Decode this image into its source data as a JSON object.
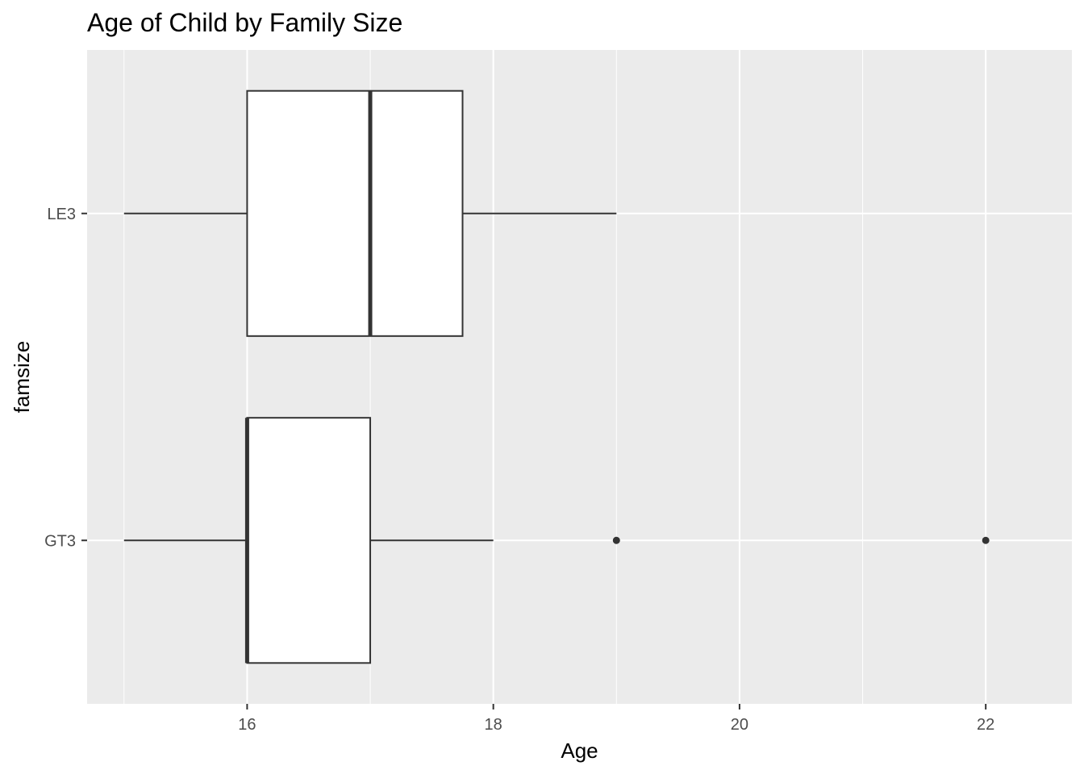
{
  "chart_data": {
    "type": "boxplot",
    "orientation": "horizontal",
    "title": "Age of Child by Family Size",
    "xlabel": "Age",
    "ylabel": "famsize",
    "xlim": [
      14.7,
      22.7
    ],
    "x_ticks": [
      16,
      18,
      20,
      22
    ],
    "categories": [
      "GT3",
      "LE3"
    ],
    "boxes": [
      {
        "category": "GT3",
        "whisker_low": 15,
        "q1": 16,
        "median": 16,
        "q3": 17,
        "whisker_high": 18,
        "outliers": [
          19,
          22
        ]
      },
      {
        "category": "LE3",
        "whisker_low": 15,
        "q1": 16,
        "median": 17,
        "q3": 17.75,
        "whisker_high": 19,
        "outliers": []
      }
    ],
    "grid": true,
    "panel_background": "#ebebeb",
    "grid_color": "#ffffff",
    "box_fill": "#ffffff",
    "stroke_color": "#333333"
  }
}
